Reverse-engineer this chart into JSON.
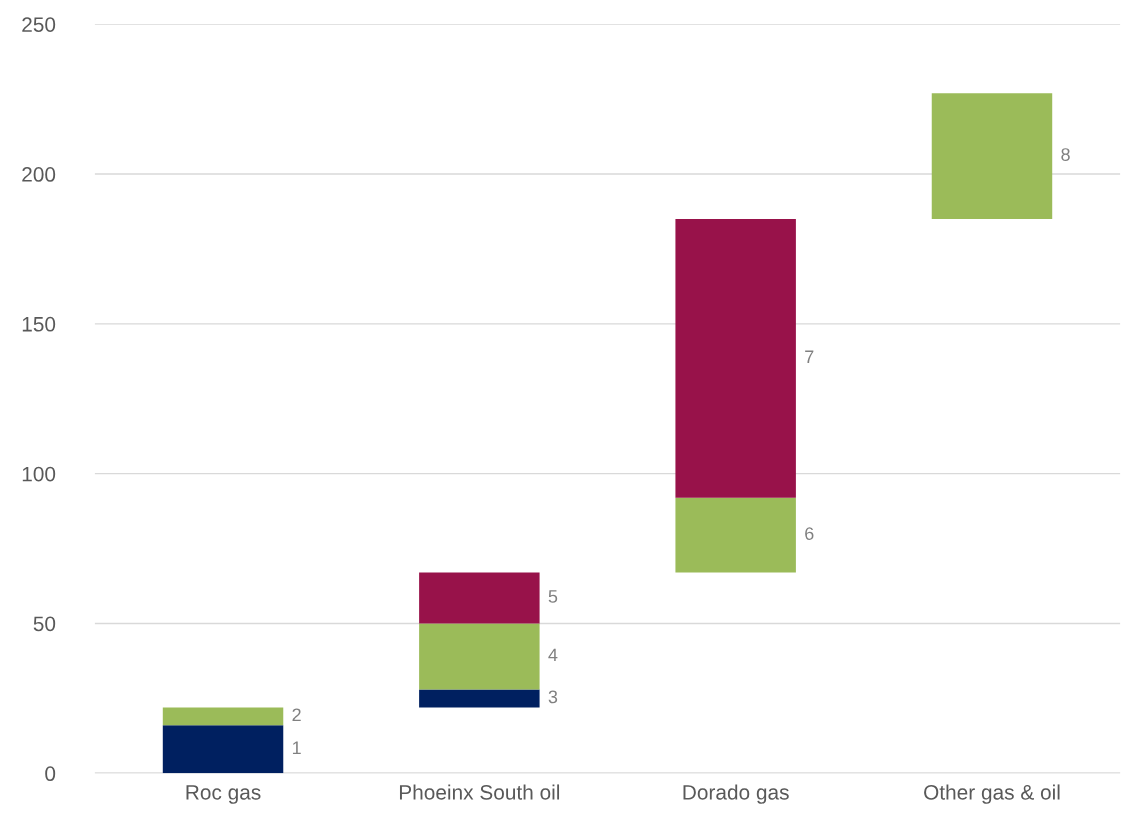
{
  "chart_data": {
    "type": "bar",
    "categories": [
      "Roc gas",
      "Phoeinx South oil",
      "Dorado gas",
      "Other gas & oil"
    ],
    "series": [
      {
        "color": "#002060",
        "base": [
          0,
          22,
          null,
          null
        ],
        "values": [
          16,
          6,
          null,
          null
        ]
      },
      {
        "color": "#9bbb59",
        "base": [
          16,
          28,
          67,
          185
        ],
        "values": [
          6,
          22,
          25,
          42
        ]
      },
      {
        "color": "#98124a",
        "base": [
          null,
          50,
          92,
          null
        ],
        "values": [
          null,
          17,
          93,
          null
        ]
      }
    ],
    "ylim": [
      0,
      250
    ],
    "yticks": [
      0,
      50,
      100,
      150,
      200,
      250
    ],
    "grid": "y",
    "legend": false,
    "annotations": [
      "1",
      "2",
      "3",
      "4",
      "5",
      "6",
      "7",
      "8"
    ]
  }
}
